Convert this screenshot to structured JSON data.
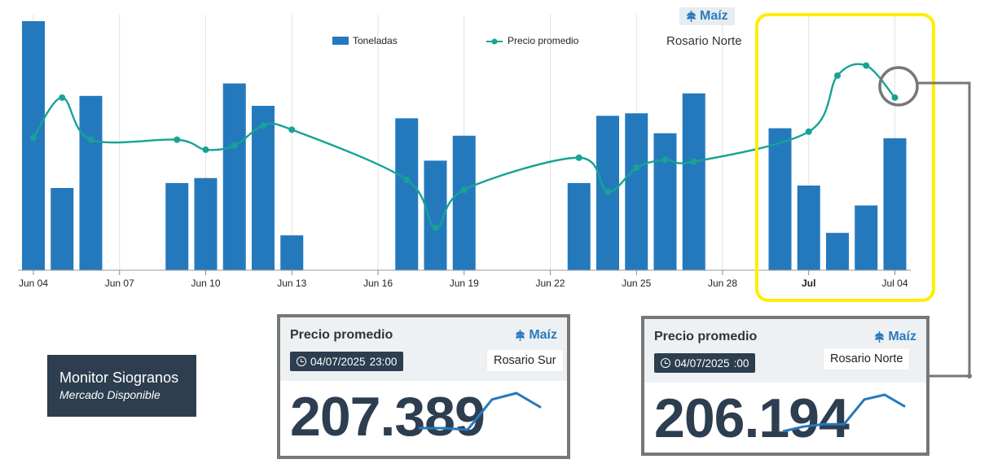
{
  "header": {
    "badge": "Maíz",
    "location": "Rosario Norte"
  },
  "legend": {
    "bars": "Toneladas",
    "line": "Precio promedio"
  },
  "chart_data": {
    "type": "bar",
    "title": "",
    "xlabel": "",
    "ylabel": "",
    "x_tick_labels": [
      "Jun 04",
      "Jun 07",
      "Jun 10",
      "Jun 13",
      "Jun 16",
      "Jun 19",
      "Jun 22",
      "Jun 25",
      "Jun 28",
      "Jul",
      "Jul 04"
    ],
    "x_start": "2025-06-04",
    "x_end": "2025-07-04",
    "legend_position": "top-center",
    "grid": true,
    "series": [
      {
        "name": "Toneladas",
        "type": "bar",
        "color": "#2479bd",
        "dates": [
          "2025-06-04",
          "2025-06-05",
          "2025-06-06",
          "2025-06-09",
          "2025-06-10",
          "2025-06-11",
          "2025-06-12",
          "2025-06-13",
          "2025-06-17",
          "2025-06-18",
          "2025-06-19",
          "2025-06-23",
          "2025-06-24",
          "2025-06-25",
          "2025-06-26",
          "2025-06-27",
          "2025-06-30",
          "2025-07-01",
          "2025-07-02",
          "2025-07-03",
          "2025-07-04"
        ],
        "values": [
          100,
          33,
          70,
          35,
          37,
          75,
          66,
          14,
          61,
          44,
          54,
          35,
          62,
          63,
          55,
          71,
          57,
          34,
          15,
          26,
          53
        ]
      },
      {
        "name": "Precio promedio",
        "type": "line",
        "color": "#16a394",
        "dates": [
          "2025-06-04",
          "2025-06-05",
          "2025-06-06",
          "2025-06-09",
          "2025-06-10",
          "2025-06-11",
          "2025-06-12",
          "2025-06-13",
          "2025-06-17",
          "2025-06-18",
          "2025-06-19",
          "2025-06-23",
          "2025-06-24",
          "2025-06-25",
          "2025-06-26",
          "2025-06-27",
          "2025-07-01",
          "2025-07-02",
          "2025-07-03",
          "2025-07-04"
        ],
        "values": [
          54,
          74,
          53,
          53,
          48,
          50,
          60,
          58,
          33,
          9,
          28,
          44,
          27,
          39,
          43,
          42,
          57,
          85,
          90,
          74
        ]
      }
    ]
  },
  "cards": [
    {
      "title": "Precio promedio",
      "badge": "Maíz",
      "date": "04/07/2025",
      "time": "23:00",
      "location": "Rosario Sur",
      "value": "207.389",
      "sparkline": [
        5,
        5,
        4,
        23,
        27,
        18
      ]
    },
    {
      "title": "Precio promedio",
      "badge": "Maíz",
      "date": "04/07/2025",
      "time": ":00",
      "location": "Rosario Norte",
      "value": "206.194",
      "sparkline": [
        0,
        4,
        6,
        6,
        27,
        31,
        21
      ]
    }
  ],
  "brand": {
    "title": "Monitor Siogranos",
    "subtitle": "Mercado Disponible"
  },
  "colors": {
    "bar": "#2479bd",
    "line": "#16a394",
    "highlight": "#ffee00",
    "dark": "#2c3e50",
    "connector": "#777777"
  }
}
